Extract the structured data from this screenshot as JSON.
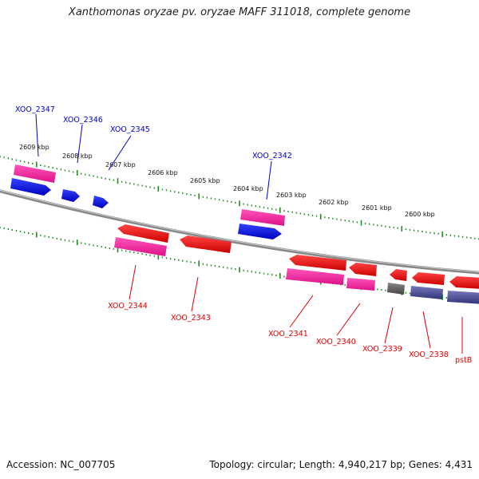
{
  "title": "Xanthomonas oryzae pv. oryzae MAFF 311018, complete genome",
  "footer": {
    "accession": "Accession: NC_007705",
    "summary": "Topology: circular; Length: 4,940,217 bp; Genes: 4,431"
  },
  "kbp_labels": [
    "2609 kbp",
    "2608 kbp",
    "2607 kbp",
    "2606 kbp",
    "2605 kbp",
    "2604 kbp",
    "2603 kbp",
    "2602 kbp",
    "2601 kbp",
    "2600 kbp"
  ],
  "genes_top": [
    {
      "label": "XOO_2347",
      "color": "#0000cc"
    },
    {
      "label": "XOO_2346",
      "color": "#0000cc"
    },
    {
      "label": "XOO_2345",
      "color": "#0000cc"
    },
    {
      "label": "XOO_2342",
      "color": "#0000cc"
    }
  ],
  "genes_bottom": [
    {
      "label": "XOO_2344",
      "color": "#dd0000"
    },
    {
      "label": "XOO_2343",
      "color": "#dd0000"
    },
    {
      "label": "XOO_2341",
      "color": "#dd0000"
    },
    {
      "label": "XOO_2340",
      "color": "#dd0000"
    },
    {
      "label": "XOO_2339",
      "color": "#dd0000"
    },
    {
      "label": "XOO_2338",
      "color": "#dd0000"
    },
    {
      "label": "pstB",
      "color": "#dd0000"
    }
  ],
  "colors": {
    "backbone": "#888888",
    "tick": "#228b22",
    "forward_gene": "#0000ff",
    "reverse_gene": "#ee0000",
    "rna_feature": "#ff3399",
    "other_feature": "#555555",
    "slate_feature": "#4b4b99"
  }
}
